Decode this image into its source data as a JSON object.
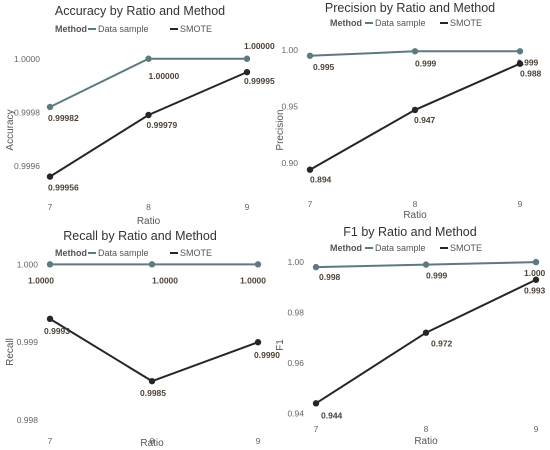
{
  "colors": {
    "data_sample": "#5d7a82",
    "smote": "#262626"
  },
  "chart_data": [
    {
      "type": "line",
      "title": "Accuracy by Ratio and Method",
      "xlabel": "Ratio",
      "ylabel": "Accuracy",
      "categories": [
        "7",
        "8",
        "9"
      ],
      "legend_title": "Method",
      "legend_position": "top",
      "ylim": [
        0.99951,
        1.00007
      ],
      "yticks": [
        0.9996,
        0.9998,
        1.0
      ],
      "ytick_labels": [
        "0.9996",
        "0.9998",
        "1.0000"
      ],
      "series": [
        {
          "name": "Data sample",
          "values": [
            0.99982,
            1.0,
            1.0
          ],
          "labels": [
            "0.99982",
            "1.00000",
            "1.00000"
          ]
        },
        {
          "name": "SMOTE",
          "values": [
            0.99956,
            0.99979,
            0.99995
          ],
          "labels": [
            "0.99956",
            "0.99979",
            "0.99995"
          ]
        }
      ]
    },
    {
      "type": "line",
      "title": "Precision by Ratio and Method",
      "xlabel": "Ratio",
      "ylabel": "Precision",
      "categories": [
        "7",
        "8",
        "9"
      ],
      "legend_title": "Method",
      "legend_position": "top",
      "ylim": [
        0.876,
        1.009
      ],
      "yticks": [
        0.9,
        0.95,
        1.0
      ],
      "ytick_labels": [
        "0.90",
        "0.95",
        "1.00"
      ],
      "series": [
        {
          "name": "Data sample",
          "values": [
            0.995,
            0.999,
            0.999
          ],
          "labels": [
            "0.995",
            "0.999",
            "0.999"
          ]
        },
        {
          "name": "SMOTE",
          "values": [
            0.894,
            0.947,
            0.988
          ],
          "labels": [
            "0.894",
            "0.947",
            "0.988"
          ]
        }
      ]
    },
    {
      "type": "line",
      "title": "Recall by Ratio and Method",
      "xlabel": "Ratio",
      "ylabel": "Recall",
      "categories": [
        "7",
        "8",
        "9"
      ],
      "legend_title": "Method",
      "legend_position": "top",
      "ylim": [
        0.99795,
        1.00003
      ],
      "yticks": [
        0.998,
        0.999,
        1.0
      ],
      "ytick_labels": [
        "0.998",
        "0.999",
        "1.000"
      ],
      "series": [
        {
          "name": "Data sample",
          "values": [
            1.0,
            1.0,
            1.0
          ],
          "labels": [
            "1.0000",
            "1.0000",
            "1.0000"
          ]
        },
        {
          "name": "SMOTE",
          "values": [
            0.9993,
            0.9985,
            0.999
          ],
          "labels": [
            "0.9993",
            "0.9985",
            "0.9990"
          ]
        }
      ]
    },
    {
      "type": "line",
      "title": "F1 by Ratio and Method",
      "xlabel": "Ratio",
      "ylabel": "F1",
      "categories": [
        "7",
        "8",
        "9"
      ],
      "legend_title": "Method",
      "legend_position": "top",
      "ylim": [
        0.937,
        1.004
      ],
      "yticks": [
        0.94,
        0.96,
        0.98,
        1.0
      ],
      "ytick_labels": [
        "0.94",
        "0.96",
        "0.98",
        "1.00"
      ],
      "series": [
        {
          "name": "Data sample",
          "values": [
            0.998,
            0.999,
            1.0
          ],
          "labels": [
            "0.998",
            "0.999",
            "1.000"
          ]
        },
        {
          "name": "SMOTE",
          "values": [
            0.944,
            0.972,
            0.993
          ],
          "labels": [
            "0.944",
            "0.972",
            "0.993"
          ]
        }
      ]
    }
  ]
}
